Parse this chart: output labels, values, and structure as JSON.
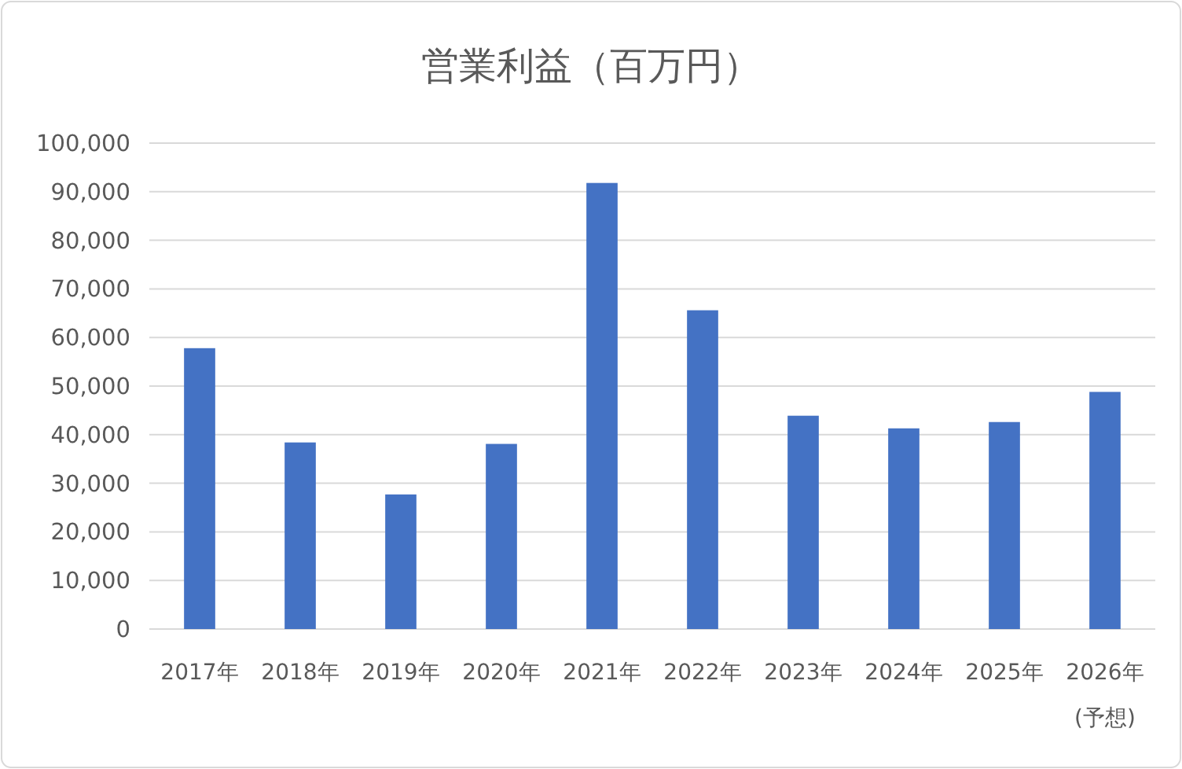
{
  "chart_data": {
    "type": "bar",
    "title": "営業利益（百万円）",
    "categories": [
      "2017年",
      "2018年",
      "2019年",
      "2020年",
      "2021年",
      "2022年",
      "2023年",
      "2024年",
      "2025年",
      "2026年\n(予想)"
    ],
    "values": [
      57800,
      38400,
      27700,
      38100,
      91800,
      65600,
      43900,
      41300,
      42600,
      48800
    ],
    "color": "#4472c4",
    "ylim": [
      0,
      100000
    ],
    "yticks": [
      {
        "value": 0,
        "label": "0"
      },
      {
        "value": 10000,
        "label": "10,000"
      },
      {
        "value": 20000,
        "label": "20,000"
      },
      {
        "value": 30000,
        "label": "30,000"
      },
      {
        "value": 40000,
        "label": "40,000"
      },
      {
        "value": 50000,
        "label": "50,000"
      },
      {
        "value": 60000,
        "label": "60,000"
      },
      {
        "value": 70000,
        "label": "70,000"
      },
      {
        "value": 80000,
        "label": "80,000"
      },
      {
        "value": 90000,
        "label": "90,000"
      },
      {
        "value": 100000,
        "label": "100,000"
      }
    ],
    "grid": "y"
  }
}
